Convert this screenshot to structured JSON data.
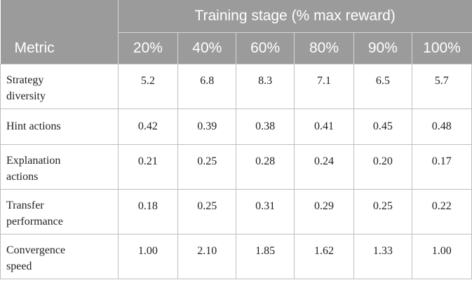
{
  "table": {
    "metric_header": "Metric",
    "group_header": "Training stage (% max reward)",
    "columns": [
      "20%",
      "40%",
      "60%",
      "80%",
      "90%",
      "100%"
    ],
    "rows": [
      {
        "metric": "Strategy diversity",
        "values": [
          "5.2",
          "6.8",
          "8.3",
          "7.1",
          "6.5",
          "5.7"
        ]
      },
      {
        "metric": "Hint actions",
        "values": [
          "0.42",
          "0.39",
          "0.38",
          "0.41",
          "0.45",
          "0.48"
        ]
      },
      {
        "metric": "Explanation actions",
        "values": [
          "0.21",
          "0.25",
          "0.28",
          "0.24",
          "0.20",
          "0.17"
        ]
      },
      {
        "metric": "Transfer performance",
        "values": [
          "0.18",
          "0.25",
          "0.31",
          "0.29",
          "0.25",
          "0.22"
        ]
      },
      {
        "metric": "Convergence speed",
        "values": [
          "1.00",
          "2.10",
          "1.85",
          "1.62",
          "1.33",
          "1.00"
        ]
      }
    ]
  },
  "colors": {
    "header_bg": "#9b9b9b",
    "header_text": "#ffffff",
    "grid": "#bfbfbf"
  }
}
